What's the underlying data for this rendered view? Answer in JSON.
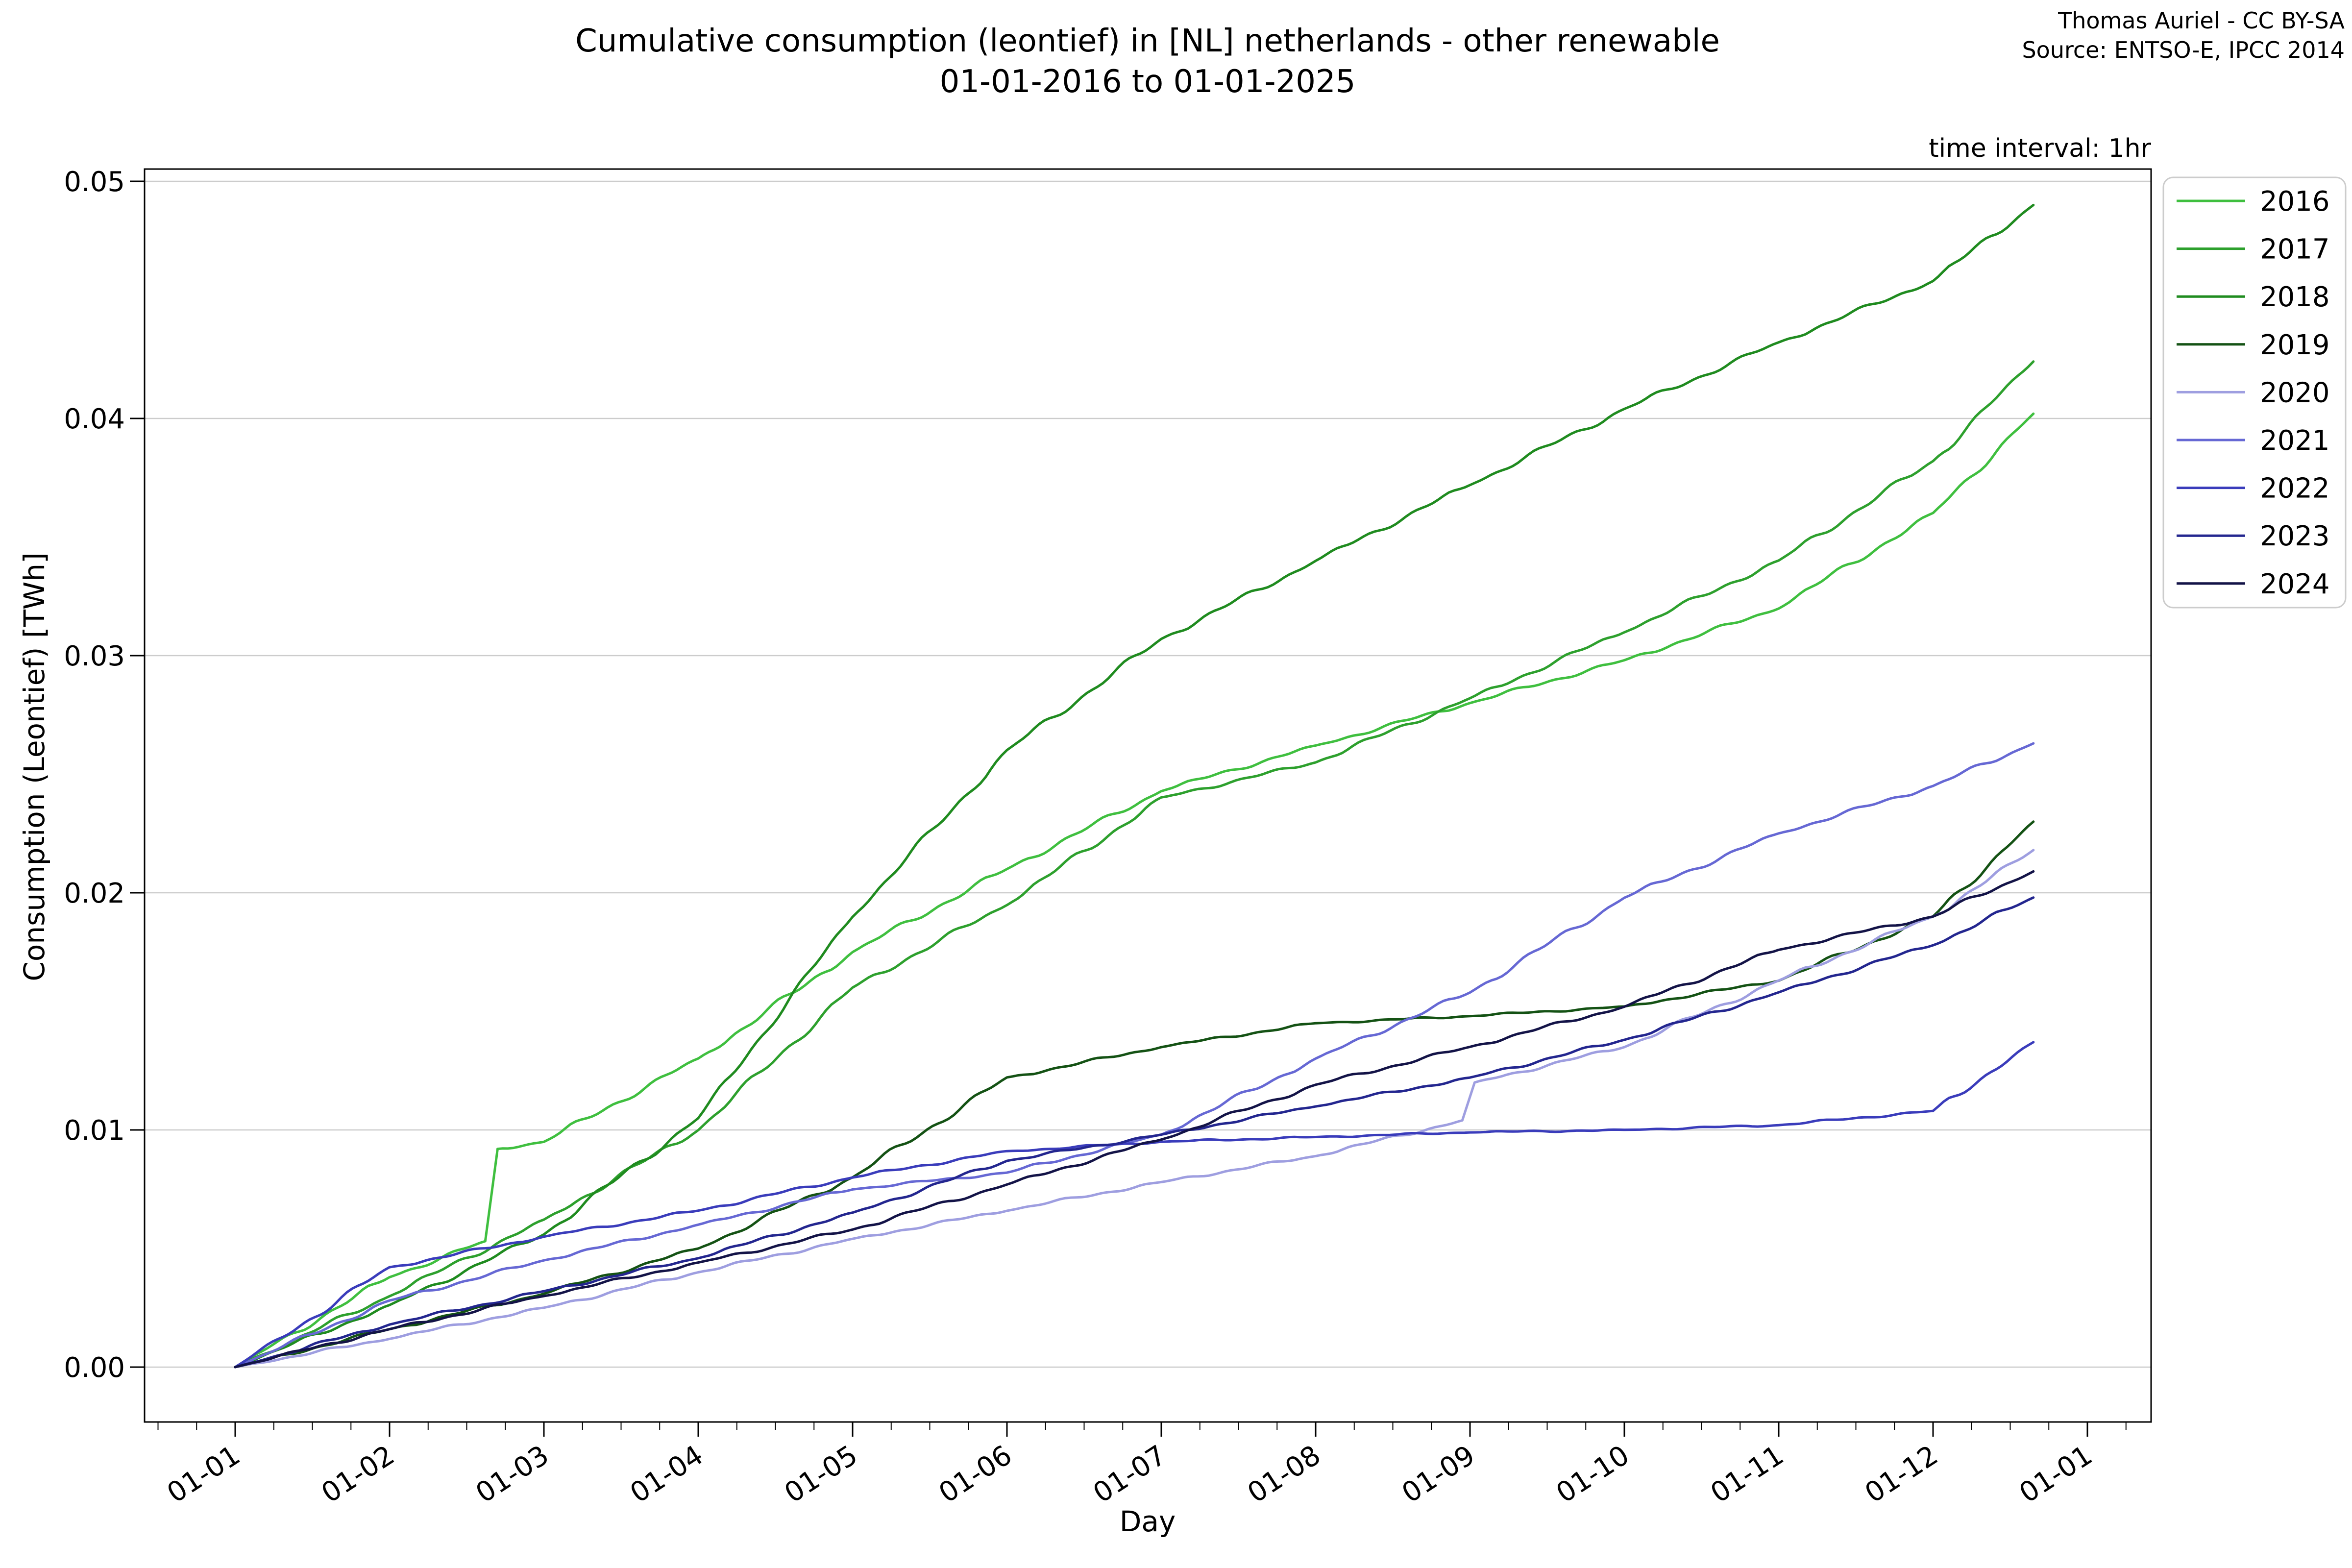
{
  "header": {
    "title_line1": "Cumulative consumption (leontief) in [NL] netherlands - other renewable",
    "title_line2": "01-01-2016 to 01-01-2025",
    "attribution_line1": "Thomas Auriel - CC BY-SA",
    "attribution_line2": "Source: ENTSO-E, IPCC 2014",
    "time_interval_note": "time interval: 1hr"
  },
  "axes": {
    "xlabel": "Day",
    "ylabel": "Consumption (Leontief) [TWh]",
    "y_ticks": [
      {
        "label": "0.00",
        "value": 0.0
      },
      {
        "label": "0.01",
        "value": 0.01
      },
      {
        "label": "0.02",
        "value": 0.02
      },
      {
        "label": "0.03",
        "value": 0.03
      },
      {
        "label": "0.04",
        "value": 0.04
      },
      {
        "label": "0.05",
        "value": 0.05
      }
    ],
    "x_ticks": [
      {
        "label": "01-01",
        "month": 0
      },
      {
        "label": "01-02",
        "month": 1
      },
      {
        "label": "01-03",
        "month": 2
      },
      {
        "label": "01-04",
        "month": 3
      },
      {
        "label": "01-05",
        "month": 4
      },
      {
        "label": "01-06",
        "month": 5
      },
      {
        "label": "01-07",
        "month": 6
      },
      {
        "label": "01-08",
        "month": 7
      },
      {
        "label": "01-09",
        "month": 8
      },
      {
        "label": "01-10",
        "month": 9
      },
      {
        "label": "01-11",
        "month": 10
      },
      {
        "label": "01-12",
        "month": 11
      },
      {
        "label": "01-01",
        "month": 12
      }
    ],
    "grid_color": "#cccccc",
    "spine_color": "#000000"
  },
  "legend": {
    "entries": [
      {
        "label": "2016",
        "color": "#3fbf3f"
      },
      {
        "label": "2017",
        "color": "#2da02d"
      },
      {
        "label": "2018",
        "color": "#1f8b1f"
      },
      {
        "label": "2019",
        "color": "#145214"
      },
      {
        "label": "2020",
        "color": "#9e9ee0"
      },
      {
        "label": "2021",
        "color": "#6668d4"
      },
      {
        "label": "2022",
        "color": "#3a3cbb"
      },
      {
        "label": "2023",
        "color": "#23268f"
      },
      {
        "label": "2024",
        "color": "#131347"
      }
    ]
  },
  "chart_data": {
    "type": "line",
    "title": "Cumulative consumption (leontief) in [NL] netherlands - other renewable 01-01-2016 to 01-01-2025",
    "xlabel": "Day",
    "ylabel": "Consumption (Leontief) [TWh]",
    "x_unit": "months since 01-01 of each year",
    "ylim": [
      -0.0023,
      0.0505
    ],
    "xlim_months": [
      -0.59,
      12.41
    ],
    "grid": "horizontal only",
    "legend_position": "outside upper right",
    "x_tick_labels": [
      "01-01",
      "01-02",
      "01-03",
      "01-04",
      "01-05",
      "01-06",
      "01-07",
      "01-08",
      "01-09",
      "01-10",
      "01-11",
      "01-12",
      "01-01"
    ],
    "series": [
      {
        "name": "2016",
        "color": "#3fbf3f",
        "points": [
          [
            0,
            0
          ],
          [
            1,
            0.0038
          ],
          [
            1.62,
            0.0053
          ],
          [
            1.7,
            0.0092
          ],
          [
            2,
            0.0095
          ],
          [
            3,
            0.013
          ],
          [
            4,
            0.0175
          ],
          [
            5,
            0.021
          ],
          [
            6,
            0.0243
          ],
          [
            7,
            0.0262
          ],
          [
            8,
            0.028
          ],
          [
            9,
            0.0298
          ],
          [
            10,
            0.032
          ],
          [
            11,
            0.036
          ],
          [
            11.65,
            0.0402
          ]
        ]
      },
      {
        "name": "2017",
        "color": "#2da02d",
        "points": [
          [
            0,
            0
          ],
          [
            1,
            0.003
          ],
          [
            2,
            0.0062
          ],
          [
            3,
            0.01
          ],
          [
            4,
            0.016
          ],
          [
            5,
            0.0195
          ],
          [
            6,
            0.024
          ],
          [
            7,
            0.0255
          ],
          [
            8,
            0.0282
          ],
          [
            9,
            0.031
          ],
          [
            10,
            0.034
          ],
          [
            11,
            0.0382
          ],
          [
            11.65,
            0.0424
          ]
        ]
      },
      {
        "name": "2018",
        "color": "#1f8b1f",
        "points": [
          [
            0,
            0
          ],
          [
            1,
            0.0026
          ],
          [
            2,
            0.0056
          ],
          [
            3,
            0.0105
          ],
          [
            4,
            0.019
          ],
          [
            5,
            0.026
          ],
          [
            6,
            0.0307
          ],
          [
            7,
            0.034
          ],
          [
            8,
            0.0372
          ],
          [
            9,
            0.0404
          ],
          [
            10,
            0.0432
          ],
          [
            11,
            0.0458
          ],
          [
            11.65,
            0.049
          ]
        ]
      },
      {
        "name": "2019",
        "color": "#145214",
        "points": [
          [
            0,
            0
          ],
          [
            1,
            0.0016
          ],
          [
            2,
            0.0031
          ],
          [
            3,
            0.005
          ],
          [
            4,
            0.008
          ],
          [
            5,
            0.0122
          ],
          [
            6,
            0.0135
          ],
          [
            7,
            0.0145
          ],
          [
            8,
            0.0148
          ],
          [
            9,
            0.0152
          ],
          [
            10,
            0.0163
          ],
          [
            11,
            0.019
          ],
          [
            11.65,
            0.023
          ]
        ]
      },
      {
        "name": "2020",
        "color": "#9e9ee0",
        "points": [
          [
            0,
            0
          ],
          [
            1,
            0.0012
          ],
          [
            2,
            0.0025
          ],
          [
            3,
            0.004
          ],
          [
            4,
            0.0054
          ],
          [
            5,
            0.0066
          ],
          [
            6,
            0.0078
          ],
          [
            7,
            0.0089
          ],
          [
            7.95,
            0.0104
          ],
          [
            8.03,
            0.012
          ],
          [
            9,
            0.0135
          ],
          [
            10,
            0.0163
          ],
          [
            11,
            0.019
          ],
          [
            11.65,
            0.0218
          ]
        ]
      },
      {
        "name": "2021",
        "color": "#6668d4",
        "points": [
          [
            0,
            0
          ],
          [
            1,
            0.0028
          ],
          [
            2,
            0.0045
          ],
          [
            3,
            0.006
          ],
          [
            4,
            0.0075
          ],
          [
            5,
            0.0082
          ],
          [
            6,
            0.0098
          ],
          [
            7,
            0.013
          ],
          [
            8,
            0.0158
          ],
          [
            9,
            0.0198
          ],
          [
            10,
            0.0225
          ],
          [
            11,
            0.0245
          ],
          [
            11.65,
            0.0263
          ]
        ]
      },
      {
        "name": "2022",
        "color": "#3a3cbb",
        "points": [
          [
            0,
            0
          ],
          [
            1,
            0.0042
          ],
          [
            2,
            0.0055
          ],
          [
            3,
            0.0066
          ],
          [
            4,
            0.008
          ],
          [
            5,
            0.0091
          ],
          [
            6,
            0.0095
          ],
          [
            7,
            0.0097
          ],
          [
            8,
            0.0099
          ],
          [
            9,
            0.01
          ],
          [
            10,
            0.0102
          ],
          [
            11,
            0.0108
          ],
          [
            11.65,
            0.0137
          ]
        ]
      },
      {
        "name": "2023",
        "color": "#23268f",
        "points": [
          [
            0,
            0
          ],
          [
            1,
            0.0018
          ],
          [
            2,
            0.0032
          ],
          [
            3,
            0.0046
          ],
          [
            4,
            0.0065
          ],
          [
            5,
            0.0087
          ],
          [
            6,
            0.0098
          ],
          [
            7,
            0.011
          ],
          [
            8,
            0.0122
          ],
          [
            9,
            0.0138
          ],
          [
            10,
            0.0158
          ],
          [
            11,
            0.0178
          ],
          [
            11.65,
            0.0198
          ]
        ]
      },
      {
        "name": "2024",
        "color": "#131347",
        "points": [
          [
            0,
            0
          ],
          [
            1,
            0.0016
          ],
          [
            2,
            0.003
          ],
          [
            3,
            0.0044
          ],
          [
            4,
            0.0058
          ],
          [
            5,
            0.0077
          ],
          [
            6,
            0.0096
          ],
          [
            7,
            0.0119
          ],
          [
            8,
            0.0135
          ],
          [
            9,
            0.0152
          ],
          [
            10,
            0.0176
          ],
          [
            11,
            0.019
          ],
          [
            11.65,
            0.0209
          ]
        ]
      }
    ]
  }
}
